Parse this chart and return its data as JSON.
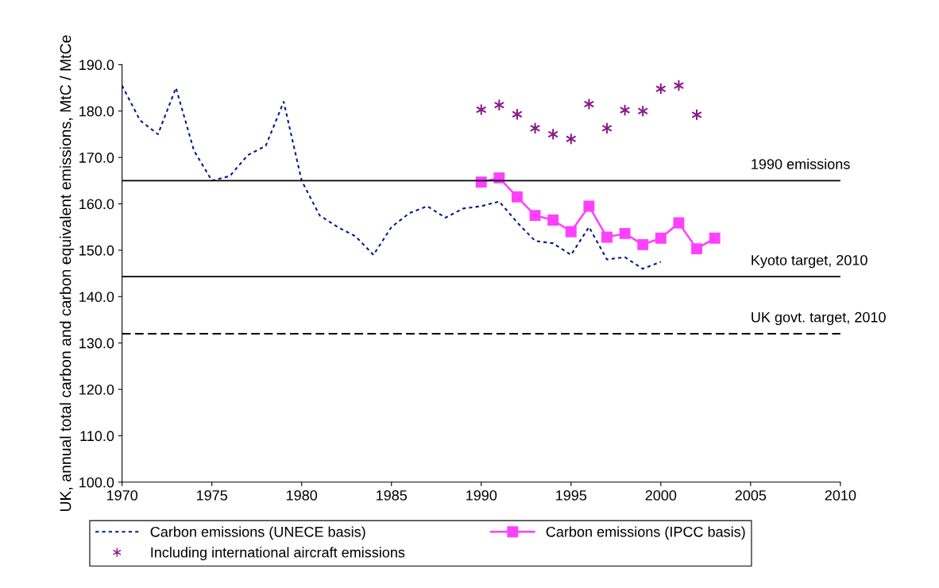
{
  "chart_data": {
    "type": "line",
    "ylabel": "UK, annual total carbon and carbon equivalent emissions, MtC / MtCe",
    "xlim": [
      1970,
      2010
    ],
    "xticks": [
      1970,
      1975,
      1980,
      1985,
      1990,
      1995,
      2000,
      2005,
      2010
    ],
    "ylim": [
      100,
      190
    ],
    "yticks": [
      {
        "value": 100,
        "label": "100.0"
      },
      {
        "value": 110,
        "label": "110.0"
      },
      {
        "value": 120,
        "label": "120.0"
      },
      {
        "value": 130,
        "label": "130.0"
      },
      {
        "value": 140,
        "label": "140.0"
      },
      {
        "value": 150,
        "label": "150.0"
      },
      {
        "value": 160,
        "label": "160.0"
      },
      {
        "value": 170,
        "label": "170.0"
      },
      {
        "value": 180,
        "label": "180.0"
      },
      {
        "value": 190,
        "label": "190.0"
      }
    ],
    "grid": false,
    "legend": "bottom",
    "series": [
      {
        "name": "Carbon emissions (UNECE basis)",
        "color": "#001a8c",
        "marker": "none",
        "line_style": "dotted",
        "x": [
          1970,
          1971,
          1972,
          1973,
          1974,
          1975,
          1976,
          1977,
          1978,
          1979,
          1980,
          1981,
          1982,
          1983,
          1984,
          1985,
          1986,
          1987,
          1988,
          1989,
          1990,
          1991,
          1992,
          1993,
          1994,
          1995,
          1996,
          1997,
          1998,
          1999,
          2000
        ],
        "values": [
          185.5,
          178,
          175,
          185,
          171.5,
          165,
          166,
          170.5,
          172.5,
          182,
          165,
          157.5,
          155,
          153,
          149,
          155,
          158,
          159.5,
          157,
          159,
          159.5,
          160.5,
          156,
          152,
          151.5,
          149,
          155,
          148,
          148.5,
          146,
          147.5
        ]
      },
      {
        "name": "Carbon emissions (IPCC basis)",
        "color": "#ff40ff",
        "marker": "square",
        "line_style": "solid",
        "x": [
          1990,
          1991,
          1992,
          1993,
          1994,
          1995,
          1996,
          1997,
          1998,
          1999,
          2000,
          2001,
          2002,
          2003
        ],
        "values": [
          164.7,
          165.6,
          161.5,
          157.5,
          156.5,
          154,
          159.5,
          152.8,
          153.6,
          151.2,
          152.6,
          155.9,
          150.3,
          152.6
        ]
      },
      {
        "name": "Including international aircraft emissions",
        "type": "scatter",
        "color": "#8b1a8b",
        "marker": "cross",
        "x": [
          1990,
          1991,
          1992,
          1993,
          1994,
          1995,
          1996,
          1997,
          1998,
          1999,
          2000,
          2001,
          2002
        ],
        "values": [
          180.3,
          181.3,
          179.3,
          176.3,
          175,
          174,
          181.5,
          176.3,
          180.2,
          180,
          184.8,
          185.5,
          179.2
        ]
      }
    ],
    "ref_lines": [
      {
        "axis": "y",
        "value": 165,
        "label": "1990 emissions",
        "color": "#000000",
        "line_style": "solid"
      },
      {
        "axis": "y",
        "value": 144.3,
        "label": "Kyoto target, 2010",
        "color": "#000000",
        "line_style": "solid"
      },
      {
        "axis": "y",
        "value": 132,
        "label": "UK govt. target, 2010",
        "color": "#000000",
        "line_style": "dashed"
      }
    ]
  }
}
